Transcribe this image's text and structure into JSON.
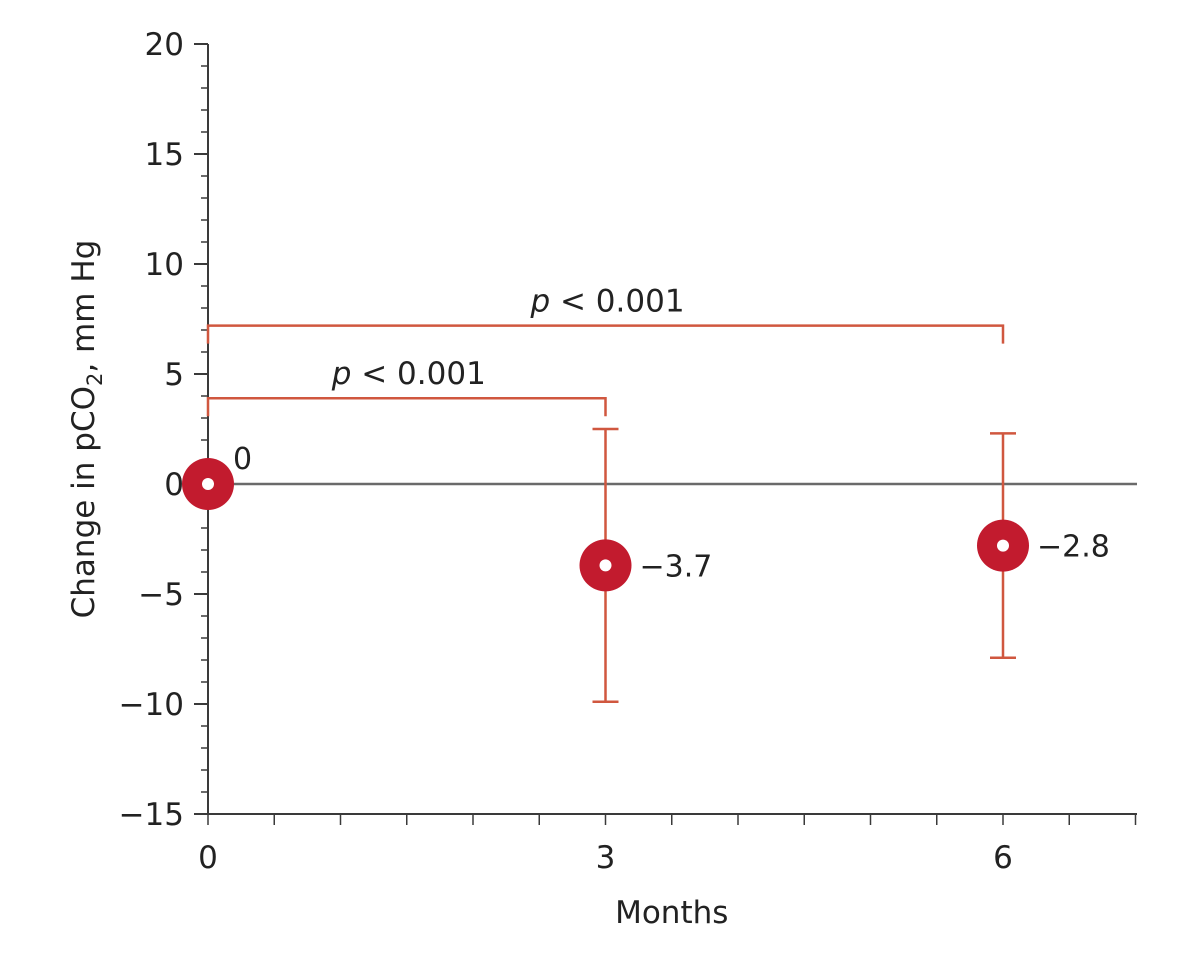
{
  "chart_data": {
    "type": "scatter",
    "xlabel": "Months",
    "ylabel": "Change in pCO",
    "ylabel_subscript": "2",
    "ylabel_suffix": ", mm Hg",
    "xlim": [
      0,
      7
    ],
    "ylim": [
      -15,
      20
    ],
    "x_ticks": [
      0,
      3,
      6
    ],
    "x_tick_labels": [
      "0",
      "3",
      "6"
    ],
    "y_ticks": [
      -15,
      -10,
      -5,
      0,
      5,
      10,
      15,
      20
    ],
    "y_tick_labels": [
      "−15",
      "−10",
      "−5",
      "0",
      "5",
      "10",
      "15",
      "20"
    ],
    "points": [
      {
        "x": 0,
        "y": 0,
        "label": "0"
      },
      {
        "x": 3,
        "y": -3.7,
        "label": "−3.7",
        "err_low": -9.9,
        "err_high": 2.5
      },
      {
        "x": 6,
        "y": -2.8,
        "label": "−2.8",
        "err_low": -7.9,
        "err_high": 2.3
      }
    ],
    "comparisons": [
      {
        "from": 0,
        "to": 3,
        "y": 3.9,
        "p_symbol": "p",
        "p_text": " < 0.001"
      },
      {
        "from": 0,
        "to": 6,
        "y": 7.2,
        "p_symbol": "p",
        "p_text": " < 0.001"
      }
    ],
    "colors": {
      "marker": "#c21b2e",
      "error_bar": "#d0573f",
      "axis": "#3a3a3a",
      "zero_line": "#6a6a6a"
    },
    "grid": false
  }
}
